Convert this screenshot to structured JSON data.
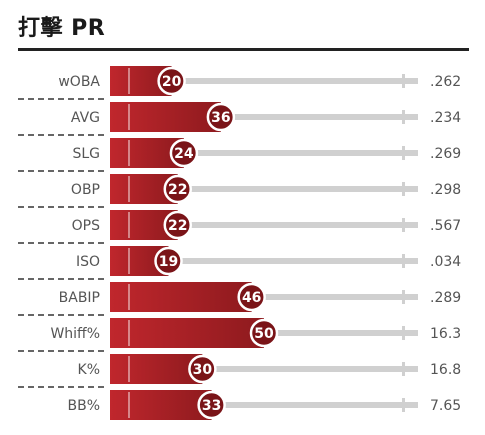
{
  "header": {
    "title": "打擊 PR"
  },
  "chart_data": {
    "type": "bar",
    "orientation": "horizontal",
    "title": "打擊 PR",
    "xlim": [
      0,
      100
    ],
    "categories": [
      "wOBA",
      "AVG",
      "SLG",
      "OBP",
      "OPS",
      "ISO",
      "BABIP",
      "Whiff%",
      "K%",
      "BB%"
    ],
    "values": [
      20,
      36,
      24,
      22,
      22,
      19,
      46,
      50,
      30,
      33
    ],
    "stat_values": [
      ".262",
      ".234",
      ".269",
      ".298",
      ".567",
      ".034",
      ".289",
      "16.3",
      "16.8",
      "7.65"
    ],
    "colors": {
      "bar_fill": "#c0272d",
      "bar_dark": "#8e1a1e",
      "circle_fill": "#7a1418",
      "track": "#d0d0d0",
      "text": "#555555"
    }
  }
}
